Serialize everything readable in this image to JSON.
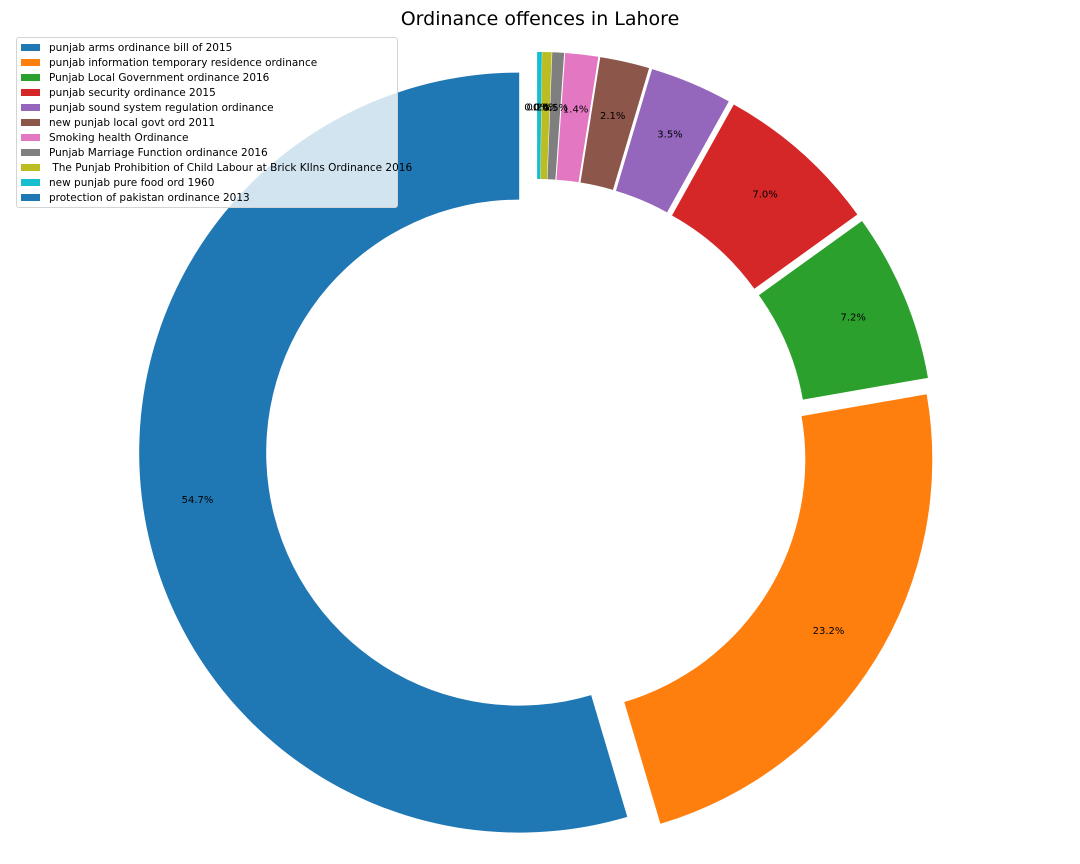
{
  "chart_data": {
    "type": "pie",
    "title": "Ordinance offences in Lahore",
    "style": "donut",
    "legend_position": "top-left",
    "slices": [
      {
        "label": "punjab arms ordinance bill of 2015",
        "value": 54.7,
        "pct_label": "54.7%",
        "color": "#1f77b4"
      },
      {
        "label": "punjab information temporary residence ordinance",
        "value": 23.2,
        "pct_label": "23.2%",
        "color": "#ff7f0e"
      },
      {
        "label": "Punjab Local Government ordinance 2016",
        "value": 7.2,
        "pct_label": "7.2%",
        "color": "#2ca02c"
      },
      {
        "label": "punjab security ordinance 2015",
        "value": 7.0,
        "pct_label": "7.0%",
        "color": "#d62728"
      },
      {
        "label": "punjab sound system regulation ordinance",
        "value": 3.5,
        "pct_label": "3.5%",
        "color": "#9467bd"
      },
      {
        "label": "new punjab local govt ord 2011",
        "value": 2.1,
        "pct_label": "2.1%",
        "color": "#8c564b"
      },
      {
        "label": "Smoking health Ordinance",
        "value": 1.4,
        "pct_label": "1.4%",
        "color": "#e377c2"
      },
      {
        "label": "Punjab Marriage Function ordinance 2016",
        "value": 0.5,
        "pct_label": "0.5%",
        "color": "#7f7f7f"
      },
      {
        "label": " The Punjab Prohibition of Child Labour at Brick KIlns Ordinance 2016",
        "value": 0.4,
        "pct_label": "0.4%",
        "color": "#bcbd22"
      },
      {
        "label": "new punjab pure food ord 1960",
        "value": 0.2,
        "pct_label": "0.2%",
        "color": "#17becf"
      },
      {
        "label": "protection of pakistan ordinance 2013",
        "value": 0.0,
        "pct_label": "0.0%",
        "color": "#1f77b4"
      }
    ]
  }
}
